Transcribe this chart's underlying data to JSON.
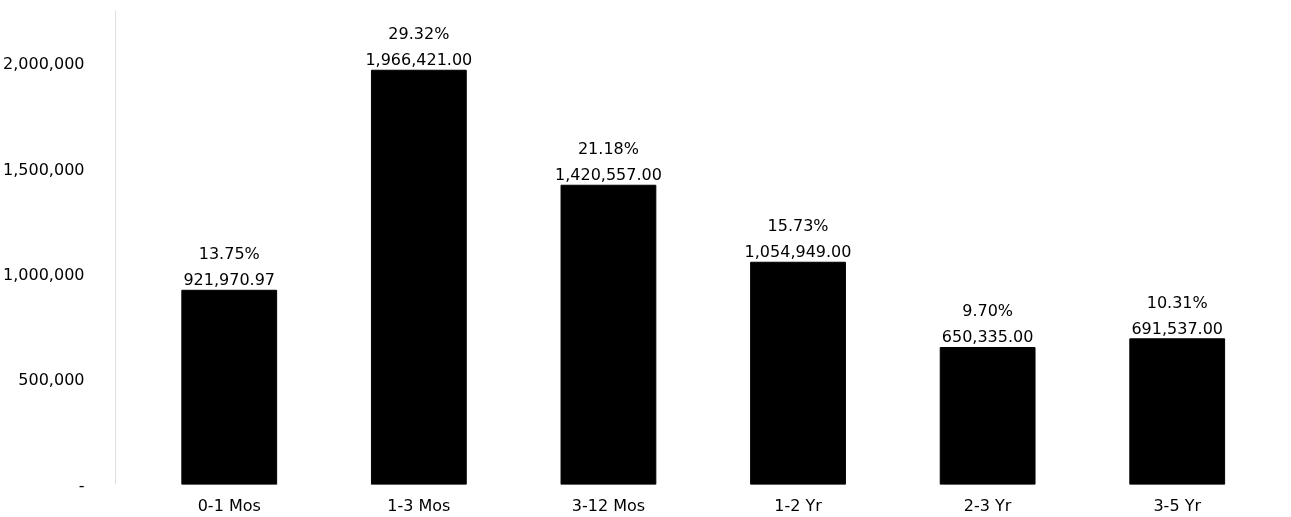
{
  "chart_data": {
    "type": "bar",
    "categories": [
      "0-1 Mos",
      "1-3 Mos",
      "3-12 Mos",
      "1-2 Yr",
      "2-3 Yr",
      "3-5 Yr"
    ],
    "values": [
      921970.97,
      1966421.0,
      1420557.0,
      1054949.0,
      650335.0,
      691537.0
    ],
    "value_labels": [
      "13.75%\n921,970.97",
      "29.32%\n1,966,421.00",
      "21.18%\n1,420,557.00",
      "15.73%\n1,054,949.00",
      "9.70%\n650,335.00",
      "10.31%\n691,537.00"
    ],
    "color": "#000000",
    "ylim": [
      0,
      2250000
    ],
    "yticks": [
      {
        "value": 0,
        "label": "-"
      },
      {
        "value": 500000,
        "label": "500,000"
      },
      {
        "value": 1000000,
        "label": "1,000,000"
      },
      {
        "value": 1500000,
        "label": "1,500,000"
      },
      {
        "value": 2000000,
        "label": "2,000,000"
      }
    ],
    "grid": false
  }
}
